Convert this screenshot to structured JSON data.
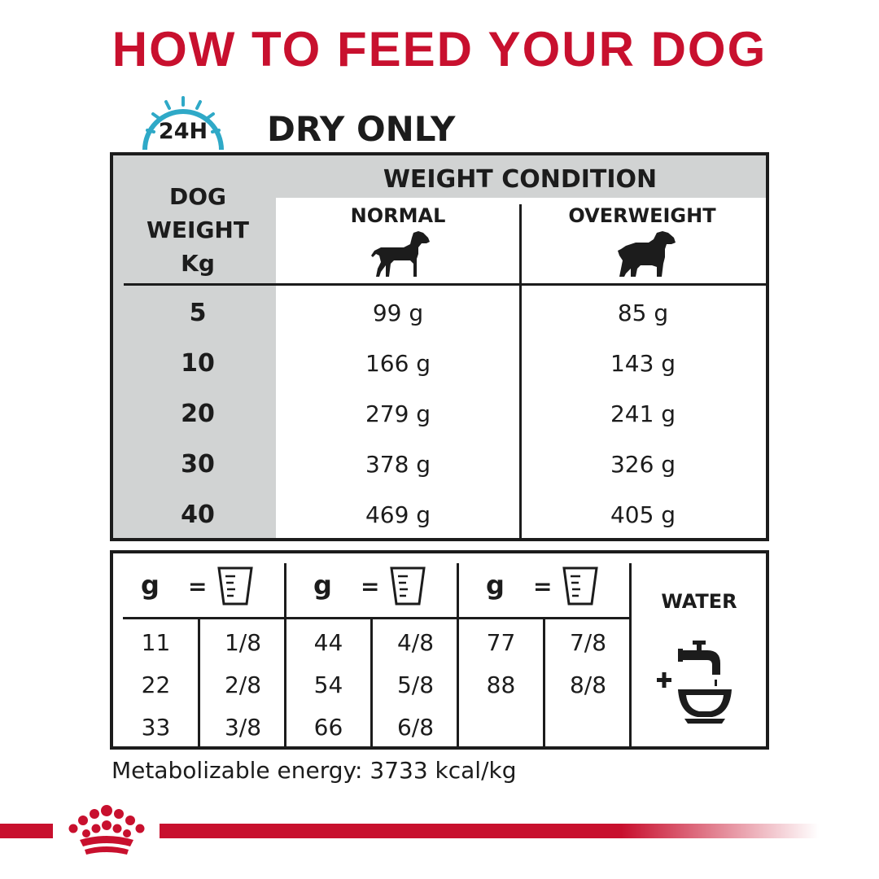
{
  "header": {
    "title": "HOW TO FEED YOUR DOG"
  },
  "badge": {
    "label": "24H",
    "color": "#2fa9c7"
  },
  "subtitle": "DRY ONLY",
  "feeding_table": {
    "weight_condition_label": "WEIGHT CONDITION",
    "dog_weight_label": [
      "DOG",
      "WEIGHT",
      "Kg"
    ],
    "columns": [
      "NORMAL",
      "OVERWEIGHT"
    ],
    "rows": [
      {
        "weight": "5",
        "normal": "99 g",
        "overweight": "85 g"
      },
      {
        "weight": "10",
        "normal": "166 g",
        "overweight": "143 g"
      },
      {
        "weight": "20",
        "normal": "279 g",
        "overweight": "241 g"
      },
      {
        "weight": "30",
        "normal": "378 g",
        "overweight": "326 g"
      },
      {
        "weight": "40",
        "normal": "469 g",
        "overweight": "405 g"
      }
    ]
  },
  "cup_table": {
    "header": {
      "g": "g",
      "eq": "="
    },
    "groups": [
      {
        "grams": [
          "11",
          "22",
          "33"
        ],
        "cups": [
          "1/8",
          "2/8",
          "3/8"
        ]
      },
      {
        "grams": [
          "44",
          "54",
          "66"
        ],
        "cups": [
          "4/8",
          "5/8",
          "6/8"
        ]
      },
      {
        "grams": [
          "77",
          "88"
        ],
        "cups": [
          "7/8",
          "8/8"
        ]
      }
    ],
    "water_label": "WATER"
  },
  "footer": {
    "energy": "Metabolizable energy: 3733 kcal/kg"
  },
  "colors": {
    "brand_red": "#c8102e",
    "table_grey": "#d1d3d3",
    "text": "#1c1c1c"
  },
  "icons": [
    "clock-24h-icon",
    "normal-dog-icon",
    "overweight-dog-icon",
    "measuring-cup-icon",
    "water-tap-icon",
    "royal-canin-crown-logo"
  ]
}
